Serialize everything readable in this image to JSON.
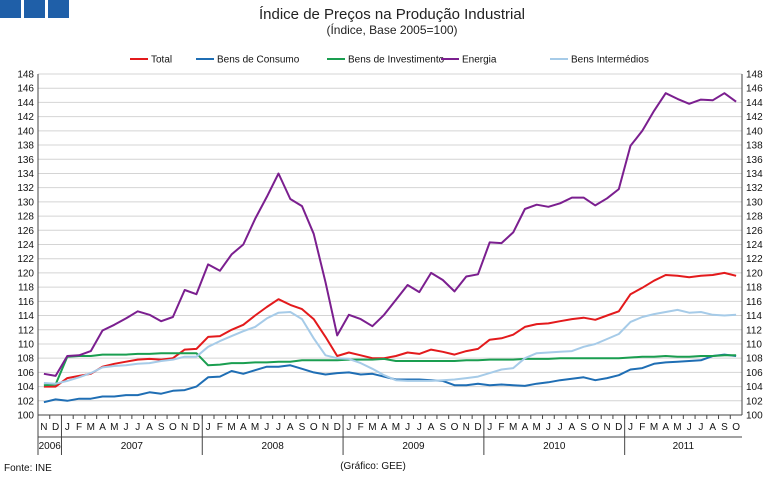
{
  "header": {
    "squares": [
      "header-square-1",
      "header-square-2",
      "header-square-3"
    ]
  },
  "chart_data": {
    "type": "line",
    "title": "Índice de Preços na Produção Industrial",
    "subtitle": "(Índice, Base 2005=100)",
    "ylim": [
      100,
      148
    ],
    "y_ticks": [
      100,
      102,
      104,
      106,
      108,
      110,
      112,
      114,
      116,
      118,
      120,
      122,
      124,
      126,
      128,
      130,
      132,
      134,
      136,
      138,
      140,
      142,
      144,
      146,
      148
    ],
    "month_labels": [
      "N",
      "D",
      "J",
      "F",
      "M",
      "A",
      "M",
      "J",
      "J",
      "A",
      "S",
      "O",
      "N",
      "D",
      "J",
      "F",
      "M",
      "A",
      "M",
      "J",
      "J",
      "A",
      "S",
      "O",
      "N",
      "D",
      "J",
      "F",
      "M",
      "A",
      "M",
      "J",
      "J",
      "A",
      "S",
      "O",
      "N",
      "D",
      "J",
      "F",
      "M",
      "A",
      "M",
      "J",
      "J",
      "A",
      "S",
      "O",
      "N",
      "D",
      "J",
      "F",
      "M",
      "A",
      "M",
      "J",
      "J",
      "A",
      "S",
      "O"
    ],
    "year_labels": [
      {
        "label": "2006",
        "start": 0,
        "end": 1
      },
      {
        "label": "2007",
        "start": 2,
        "end": 13
      },
      {
        "label": "2008",
        "start": 14,
        "end": 25
      },
      {
        "label": "2009",
        "start": 26,
        "end": 37
      },
      {
        "label": "2010",
        "start": 38,
        "end": 49
      },
      {
        "label": "2011",
        "start": 50,
        "end": 59
      }
    ],
    "series": [
      {
        "name": "Total",
        "color": "#e31a1c",
        "values": [
          104.0,
          104.0,
          105.2,
          105.5,
          105.8,
          106.8,
          107.2,
          107.5,
          107.8,
          107.9,
          107.8,
          108.0,
          109.2,
          109.3,
          111.0,
          111.1,
          112.0,
          112.7,
          114.0,
          115.2,
          116.3,
          115.5,
          114.9,
          113.5,
          111.0,
          108.3,
          108.8,
          108.4,
          108.0,
          108.0,
          108.3,
          108.8,
          108.6,
          109.2,
          108.9,
          108.5,
          109.0,
          109.3,
          110.6,
          110.8,
          111.3,
          112.4,
          112.8,
          112.9,
          113.2,
          113.5,
          113.7,
          113.4,
          114.0,
          114.6,
          117.0,
          117.9,
          118.9,
          119.7,
          119.6,
          119.4,
          119.6,
          119.7,
          120.0,
          119.6
        ]
      },
      {
        "name": "Bens de Consumo",
        "color": "#1f6eb4",
        "values": [
          101.8,
          102.2,
          102.0,
          102.3,
          102.3,
          102.6,
          102.6,
          102.8,
          102.8,
          103.2,
          103.0,
          103.4,
          103.5,
          104.0,
          105.3,
          105.4,
          106.2,
          105.8,
          106.3,
          106.8,
          106.8,
          107.0,
          106.5,
          106.0,
          105.7,
          105.9,
          106.0,
          105.7,
          105.8,
          105.4,
          105.0,
          105.0,
          105.0,
          104.9,
          104.8,
          104.2,
          104.2,
          104.4,
          104.2,
          104.3,
          104.2,
          104.1,
          104.4,
          104.6,
          104.9,
          105.1,
          105.3,
          104.9,
          105.2,
          105.6,
          106.4,
          106.6,
          107.2,
          107.4,
          107.5,
          107.6,
          107.7,
          108.3,
          108.5,
          108.3
        ]
      },
      {
        "name": "Bens de Investimento",
        "color": "#1a9e50",
        "values": [
          104.2,
          104.3,
          108.2,
          108.3,
          108.3,
          108.5,
          108.5,
          108.5,
          108.6,
          108.6,
          108.7,
          108.7,
          108.7,
          108.7,
          107.0,
          107.1,
          107.3,
          107.3,
          107.4,
          107.4,
          107.5,
          107.5,
          107.7,
          107.7,
          107.7,
          107.7,
          107.8,
          107.8,
          107.8,
          107.9,
          107.6,
          107.6,
          107.6,
          107.6,
          107.6,
          107.6,
          107.7,
          107.7,
          107.8,
          107.8,
          107.8,
          107.9,
          107.9,
          107.9,
          108.0,
          108.0,
          108.0,
          108.0,
          108.0,
          108.0,
          108.1,
          108.2,
          108.2,
          108.3,
          108.2,
          108.2,
          108.3,
          108.3,
          108.4,
          108.4
        ]
      },
      {
        "name": "Energia",
        "color": "#7b1f8f",
        "values": [
          105.8,
          105.5,
          108.3,
          108.4,
          109.0,
          111.9,
          112.7,
          113.6,
          114.6,
          114.1,
          113.2,
          113.8,
          117.6,
          117.0,
          121.2,
          120.3,
          122.6,
          124.0,
          127.6,
          130.7,
          134.0,
          130.4,
          129.4,
          125.5,
          118.7,
          111.2,
          114.1,
          113.5,
          112.5,
          114.1,
          116.2,
          118.3,
          117.3,
          120.0,
          119.0,
          117.4,
          119.5,
          119.8,
          124.3,
          124.2,
          125.7,
          129.0,
          129.6,
          129.3,
          129.8,
          130.6,
          130.6,
          129.5,
          130.5,
          131.8,
          137.9,
          140.0,
          142.8,
          145.3,
          144.5,
          143.8,
          144.4,
          144.3,
          145.3,
          144.1
        ]
      },
      {
        "name": "Bens Intermédios",
        "color": "#a6cbe8",
        "values": [
          104.5,
          104.4,
          104.8,
          105.3,
          105.9,
          106.7,
          106.9,
          107.0,
          107.2,
          107.3,
          107.6,
          107.8,
          108.2,
          108.2,
          109.6,
          110.4,
          111.1,
          111.8,
          112.4,
          113.6,
          114.4,
          114.5,
          113.5,
          110.8,
          108.4,
          108.0,
          107.9,
          107.3,
          106.5,
          105.6,
          104.9,
          104.8,
          104.8,
          104.8,
          104.9,
          105.0,
          105.2,
          105.4,
          105.9,
          106.4,
          106.6,
          108.0,
          108.7,
          108.8,
          108.9,
          109.0,
          109.6,
          110.0,
          110.7,
          111.4,
          113.1,
          113.8,
          114.2,
          114.5,
          114.8,
          114.4,
          114.5,
          114.1,
          114.0,
          114.1
        ]
      }
    ],
    "source": "Fonte: INE",
    "credit": "(Gráfico: GEE)"
  }
}
